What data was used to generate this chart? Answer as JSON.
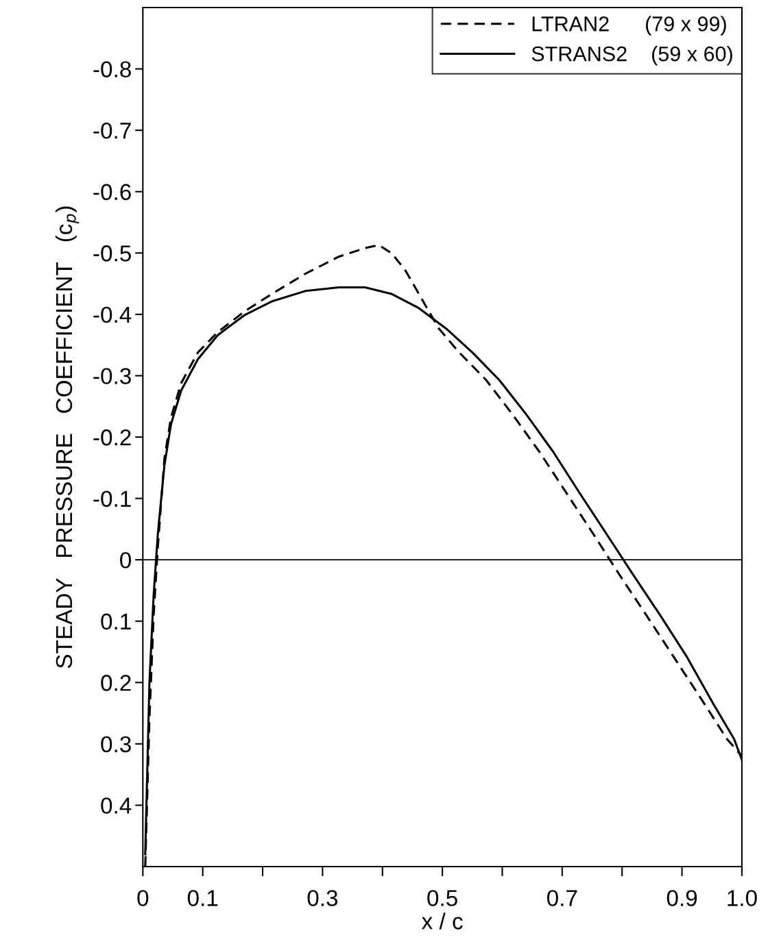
{
  "chart_data": {
    "type": "line",
    "xlabel": "x / c",
    "ylabel": "STEADY   PRESSURE   COEFFICIENT   (c$_{p}$)",
    "xlim": [
      0,
      1.0
    ],
    "xticks": [
      0,
      0.1,
      {
        "value": 0.2,
        "label": null
      },
      0.3,
      {
        "value": 0.4,
        "label": null
      },
      0.5,
      {
        "value": 0.6,
        "label": null
      },
      0.7,
      {
        "value": 0.8,
        "label": null
      },
      0.9,
      {
        "value": 1.0,
        "label": "1.0"
      }
    ],
    "ylim": [
      0.5,
      -0.9
    ],
    "yticks": [
      -0.8,
      -0.7,
      -0.6,
      -0.5,
      -0.4,
      -0.3,
      -0.2,
      -0.1,
      0,
      0.1,
      0.2,
      0.3,
      0.4
    ],
    "grid": false,
    "legend": "top right",
    "marker": "none",
    "ref_lines": [
      {
        "axis": "y",
        "value": 0,
        "color": "#000000",
        "line_style": "solid"
      }
    ],
    "series": [
      {
        "name": "LTRAN2      (79 x 99)",
        "color": "#000000",
        "line_style": "dashed",
        "x": [
          0.004,
          0.011,
          0.018,
          0.025,
          0.036,
          0.047,
          0.064,
          0.092,
          0.125,
          0.17,
          0.215,
          0.271,
          0.327,
          0.371,
          0.394,
          0.416,
          0.438,
          0.461,
          0.494,
          0.528,
          0.573,
          0.617,
          0.662,
          0.707,
          0.752,
          0.796,
          0.841,
          0.886,
          0.931,
          0.975,
          1.0
        ],
        "values": [
          0.5,
          0.26,
          0.091,
          -0.02,
          -0.165,
          -0.232,
          -0.288,
          -0.338,
          -0.371,
          -0.405,
          -0.433,
          -0.466,
          -0.494,
          -0.508,
          -0.513,
          -0.499,
          -0.472,
          -0.433,
          -0.377,
          -0.338,
          -0.293,
          -0.237,
          -0.176,
          -0.109,
          -0.042,
          0.025,
          0.091,
          0.158,
          0.225,
          0.292,
          0.32
        ]
      },
      {
        "name": "STRANS2    (59 x 60)",
        "color": "#000000",
        "line_style": "solid",
        "x": [
          0.004,
          0.011,
          0.018,
          0.025,
          0.036,
          0.047,
          0.064,
          0.092,
          0.125,
          0.17,
          0.215,
          0.271,
          0.327,
          0.371,
          0.416,
          0.461,
          0.506,
          0.55,
          0.595,
          0.64,
          0.685,
          0.729,
          0.774,
          0.819,
          0.864,
          0.908,
          0.953,
          0.987,
          1.0
        ],
        "values": [
          0.48,
          0.2,
          0.058,
          -0.042,
          -0.154,
          -0.221,
          -0.276,
          -0.327,
          -0.366,
          -0.399,
          -0.421,
          -0.438,
          -0.444,
          -0.444,
          -0.433,
          -0.41,
          -0.377,
          -0.338,
          -0.293,
          -0.237,
          -0.176,
          -0.109,
          -0.042,
          0.025,
          0.091,
          0.158,
          0.236,
          0.292,
          0.326
        ]
      }
    ]
  }
}
